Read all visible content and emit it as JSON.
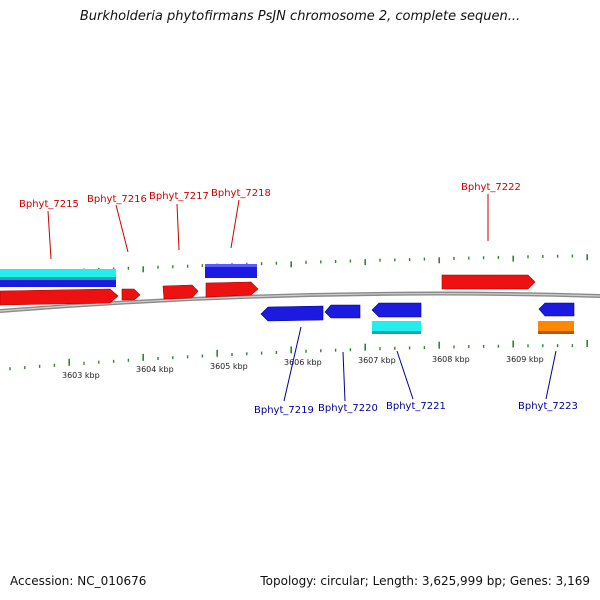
{
  "title": "Burkholderia phytofirmans PsJN chromosome 2, complete sequen...",
  "accession_text": "Accession: NC_010676",
  "summary_text": "Topology: circular; Length: 3,625,999 bp; Genes: 3,169",
  "colors": {
    "forward_gene": "#ee1111",
    "reverse_gene": "#1a1ae0",
    "cyan_feature": "#22eeee",
    "orange_feature": "#ff8800",
    "backbone": "#8a8a8a",
    "tick": "#2a8a2a",
    "forward_label": "#cc0000",
    "reverse_label": "#000099"
  },
  "scale_labels": [
    "3603 kbp",
    "3604 kbp",
    "3605 kbp",
    "3606 kbp",
    "3607 kbp",
    "3608 kbp",
    "3609 kbp"
  ],
  "forward_labels": [
    "Bphyt_7215",
    "Bphyt_7216",
    "Bphyt_7217",
    "Bphyt_7218",
    "Bphyt_7222"
  ],
  "reverse_labels": [
    "Bphyt_7219",
    "Bphyt_7220",
    "Bphyt_7221",
    "Bphyt_7223"
  ]
}
